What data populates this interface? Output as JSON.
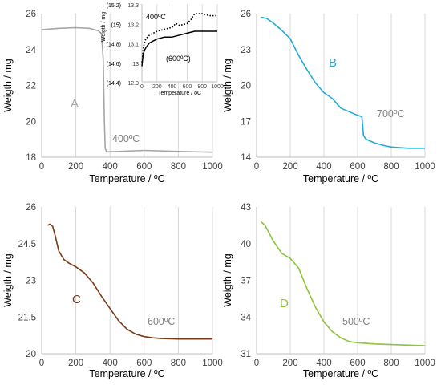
{
  "chart_data": [
    {
      "id": "A",
      "type": "line",
      "panel_label": "A",
      "annotation": "400ºC",
      "xlabel": "Temperature / ºC",
      "ylabel": "Weigth / mg",
      "xlim": [
        0,
        1000
      ],
      "ylim": [
        18,
        26
      ],
      "xticks": [
        0,
        200,
        400,
        600,
        800,
        1000
      ],
      "yticks": [
        18,
        20,
        22,
        24,
        26
      ],
      "grid": "vertical",
      "color": "#a6a6a6",
      "series": [
        {
          "x": [
            0,
            100,
            200,
            280,
            330,
            350,
            360,
            367,
            372,
            380,
            450,
            600,
            800,
            1000
          ],
          "y": [
            25.1,
            25.18,
            25.22,
            25.18,
            25.05,
            24.9,
            23.5,
            20.0,
            18.5,
            18.3,
            18.32,
            18.38,
            18.32,
            18.28
          ]
        }
      ]
    },
    {
      "id": "A-inset",
      "type": "line",
      "xlabel": "Temperature / oC",
      "ylabel": "Weigth / mg",
      "xlim": [
        0,
        1000
      ],
      "ylim": [
        12.9,
        13.3
      ],
      "xticks": [
        0,
        200,
        400,
        600,
        800,
        1000
      ],
      "yticks": [
        12.9,
        13,
        13.1,
        13.2,
        13.3
      ],
      "secondary_yticks": [
        "(14.4)",
        "(14.6)",
        "(14.8)",
        "(15)",
        "(15.2)"
      ],
      "grid": "vertical",
      "series": [
        {
          "label": "400ºC",
          "style": "dotted",
          "color": "#000000",
          "x": [
            0,
            20,
            50,
            100,
            200,
            300,
            400,
            450,
            500,
            600,
            650,
            700,
            800,
            900,
            1000
          ],
          "y": [
            13.0,
            13.08,
            13.12,
            13.14,
            13.16,
            13.17,
            13.18,
            13.2,
            13.19,
            13.2,
            13.22,
            13.25,
            13.25,
            13.24,
            13.24
          ]
        },
        {
          "label": "(600ºC)",
          "style": "solid",
          "color": "#000000",
          "x": [
            0,
            10,
            30,
            60,
            100,
            200,
            300,
            400,
            500,
            600,
            700,
            800,
            900,
            1000
          ],
          "y": [
            12.98,
            13.02,
            13.06,
            13.08,
            13.1,
            13.12,
            13.13,
            13.13,
            13.14,
            13.15,
            13.16,
            13.16,
            13.16,
            13.16
          ]
        }
      ]
    },
    {
      "id": "B",
      "type": "line",
      "panel_label": "B",
      "annotation": "700ºC",
      "xlabel": "Temperature / ºC",
      "ylabel": "Weigth / mg",
      "xlim": [
        0,
        1000
      ],
      "ylim": [
        14,
        26
      ],
      "xticks": [
        0,
        200,
        400,
        600,
        800,
        1000
      ],
      "yticks": [
        14,
        17,
        20,
        23,
        26
      ],
      "grid": "vertical",
      "color": "#21a9d6",
      "series": [
        {
          "x": [
            25,
            60,
            100,
            150,
            200,
            250,
            300,
            350,
            400,
            450,
            500,
            550,
            600,
            625,
            635,
            650,
            700,
            750,
            800,
            850,
            900,
            1000
          ],
          "y": [
            25.7,
            25.6,
            25.2,
            24.6,
            23.9,
            22.5,
            21.3,
            20.2,
            19.4,
            18.9,
            18.1,
            17.8,
            17.5,
            17.4,
            15.8,
            15.5,
            15.2,
            15.0,
            14.85,
            14.8,
            14.75,
            14.75
          ]
        }
      ]
    },
    {
      "id": "C",
      "type": "line",
      "panel_label": "C",
      "annotation": "600ºC",
      "xlabel": "Temperature / ºC",
      "ylabel": "Weigth / mg",
      "xlim": [
        0,
        1000
      ],
      "ylim": [
        20,
        26
      ],
      "xticks": [
        0,
        200,
        400,
        600,
        800,
        1000
      ],
      "yticks": [
        20,
        21.5,
        23,
        24.5,
        26
      ],
      "grid": "vertical",
      "color": "#7b3a16",
      "series": [
        {
          "x": [
            35,
            50,
            65,
            80,
            100,
            130,
            160,
            200,
            250,
            300,
            350,
            400,
            450,
            500,
            550,
            600,
            650,
            700,
            800,
            900,
            1000
          ],
          "y": [
            25.25,
            25.3,
            25.2,
            24.8,
            24.2,
            23.85,
            23.7,
            23.55,
            23.3,
            22.9,
            22.35,
            21.85,
            21.35,
            21.0,
            20.8,
            20.7,
            20.65,
            20.62,
            20.6,
            20.6,
            20.6
          ]
        }
      ]
    },
    {
      "id": "D",
      "type": "line",
      "panel_label": "D",
      "annotation": "500ºC",
      "xlabel": "Temperature / ºC",
      "ylabel": "Weigth / mg",
      "xlim": [
        0,
        1000
      ],
      "ylim": [
        31,
        43
      ],
      "xticks": [
        0,
        200,
        400,
        600,
        800,
        1000
      ],
      "yticks": [
        31,
        34,
        37,
        40,
        43
      ],
      "grid": "vertical",
      "color": "#8cc43c",
      "series": [
        {
          "x": [
            25,
            50,
            100,
            150,
            200,
            250,
            300,
            350,
            400,
            450,
            500,
            550,
            600,
            700,
            800,
            900,
            1000
          ],
          "y": [
            41.8,
            41.5,
            40.2,
            39.2,
            38.8,
            38.0,
            36.3,
            34.8,
            33.6,
            32.8,
            32.3,
            32.0,
            31.9,
            31.8,
            31.75,
            31.7,
            31.65
          ]
        }
      ]
    }
  ]
}
